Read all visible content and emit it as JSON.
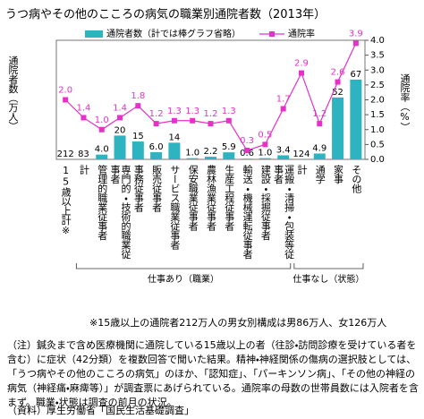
{
  "chart_data": {
    "type": "bar_line",
    "title": "うつ病やその他のこころの病気の職業別通院者数（2013年）",
    "y_label": "通院者数（万人）",
    "y2_label": "通院率（%）",
    "categories": [
      "15歳以上計※",
      "計",
      "管理的職業従事者",
      "専門的・技術的職業従事者",
      "事務従事者",
      "販売従事者",
      "サービス職業従事者",
      "保安職業従事者",
      "農林漁業従事者",
      "生産工程従事者",
      "輸送・機械運転従事者",
      "建設・採掘従事者",
      "運搬・清掃・包装等従事者",
      "計",
      "通学",
      "家事",
      "その他"
    ],
    "category_groups": [
      null,
      "仕事あり（職業）",
      "仕事あり（職業）",
      "仕事あり（職業）",
      "仕事あり（職業）",
      "仕事あり（職業）",
      "仕事あり（職業）",
      "仕事あり（職業）",
      "仕事あり（職業）",
      "仕事あり（職業）",
      "仕事あり（職業）",
      "仕事あり（職業）",
      "仕事あり（職業）",
      "仕事なし（状態）",
      "仕事なし（状態）",
      "仕事なし（状態）",
      "仕事なし（状態）"
    ],
    "series": [
      {
        "name": "通院者数（計では棒グラフ省略）",
        "type": "bar",
        "axis": "y",
        "color": "#2eb4c0",
        "values": [
          212,
          83,
          4.0,
          20,
          15,
          6.0,
          14,
          1.0,
          2.2,
          5.9,
          0.6,
          1.0,
          3.4,
          124,
          4.9,
          52,
          67
        ],
        "value_labels": [
          "212",
          "83",
          "4.0",
          "20",
          "15",
          "6.0",
          "14",
          "1.0",
          "2.2",
          "5.9",
          "0.6",
          "1.0",
          "3.4",
          "124",
          "4.9",
          "52",
          "67"
        ],
        "bar_omitted": [
          true,
          true,
          false,
          false,
          false,
          false,
          false,
          false,
          false,
          false,
          false,
          false,
          false,
          true,
          false,
          false,
          false
        ]
      },
      {
        "name": "通院率",
        "type": "line",
        "axis": "y2",
        "color": "#e630c8",
        "marker": "square",
        "values": [
          2.0,
          1.4,
          1.0,
          1.4,
          1.8,
          1.2,
          1.3,
          1.3,
          1.2,
          1.3,
          0.3,
          0.5,
          1.7,
          2.9,
          1.2,
          2.6,
          3.9
        ],
        "value_labels": [
          "2.0",
          "1.4",
          "1.0",
          "1.4",
          "1.8",
          "1.2",
          "1.3",
          "1.3",
          "1.2",
          "1.3",
          "0.3",
          "0.5",
          "1.7",
          "2.9",
          "1.2",
          "2.6",
          "3.9"
        ]
      }
    ],
    "ylim": [
      0,
      100
    ],
    "y2lim": [
      0,
      4
    ],
    "y2ticks": [
      {
        "value": 0,
        "label": "0.0"
      },
      {
        "value": 0.5,
        "label": "0.5"
      },
      {
        "value": 1,
        "label": "1.0"
      },
      {
        "value": 1.5,
        "label": "1.5"
      },
      {
        "value": 2,
        "label": "2.0"
      },
      {
        "value": 2.5,
        "label": "2.5"
      },
      {
        "value": 3,
        "label": "3.0"
      },
      {
        "value": 3.5,
        "label": "3.5"
      },
      {
        "value": 4,
        "label": "4.0"
      }
    ],
    "footnote": "※15歳以上の通院者212万人の男女別構成は男86万人、女126万人"
  },
  "note": "（注）鍼灸まで含め医療機関に通院している15歳以上の者（往診・訪問診療を受けている者を含む）に症状（42分類）を複数回答で聞いた結果。精神・神経関係の傷病の選択肢としては、「うつ病やその他のこころの病気」のほか、「認知症」、「パーキンソン病」、「その他の神経の病気（神経痛・麻痺等）」が調査票にあげられている。通院率の母数の世帯員数には入院者を含まず。職業・状態は調査の前月の状況。",
  "source": "（資料）厚生労働省「国民生活基礎調査」"
}
